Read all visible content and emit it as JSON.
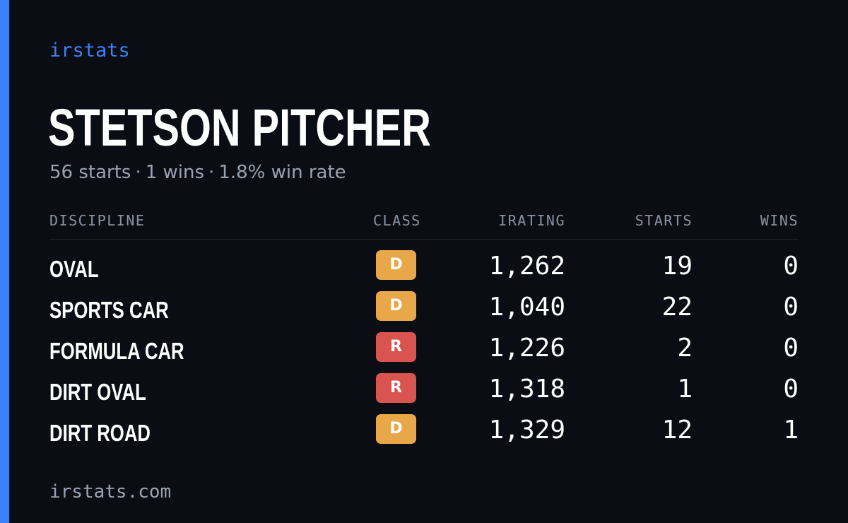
{
  "brand": {
    "name": "irstats"
  },
  "driver": {
    "name": "STETSON PITCHER"
  },
  "summary": {
    "starts": "56 starts",
    "wins": "1 wins",
    "win_rate": "1.8% win rate",
    "separator": "·"
  },
  "table": {
    "headers": {
      "discipline": "DISCIPLINE",
      "class": "CLASS",
      "irating": "IRATING",
      "starts": "STARTS",
      "wins": "WINS"
    },
    "rows": [
      {
        "discipline": "OVAL",
        "class": "D",
        "irating": "1,262",
        "starts": "19",
        "wins": "0"
      },
      {
        "discipline": "SPORTS CAR",
        "class": "D",
        "irating": "1,040",
        "starts": "22",
        "wins": "0"
      },
      {
        "discipline": "FORMULA CAR",
        "class": "R",
        "irating": "1,226",
        "starts": "2",
        "wins": "0"
      },
      {
        "discipline": "DIRT OVAL",
        "class": "R",
        "irating": "1,318",
        "starts": "1",
        "wins": "0"
      },
      {
        "discipline": "DIRT ROAD",
        "class": "D",
        "irating": "1,329",
        "starts": "12",
        "wins": "1"
      }
    ]
  },
  "class_colors": {
    "D": "#e8a84a",
    "R": "#d9534f"
  },
  "accent_color": "#3b82f6",
  "footer": {
    "url": "irstats.com"
  }
}
